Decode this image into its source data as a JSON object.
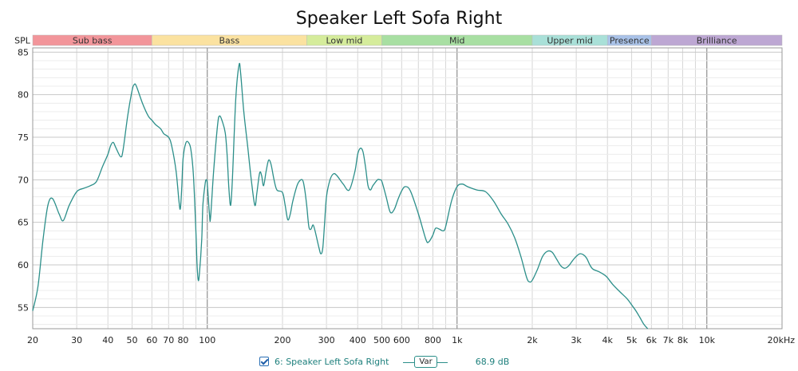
{
  "chart_data": {
    "type": "line",
    "title": "Speaker Left Sofa Right",
    "ylabel": "SPL",
    "x_scale": "log",
    "xlim": [
      20,
      20000
    ],
    "ylim": [
      52.5,
      85.5
    ],
    "x_ticks": [
      {
        "value": 20,
        "label": "20"
      },
      {
        "value": 30,
        "label": "30"
      },
      {
        "value": 40,
        "label": "40"
      },
      {
        "value": 50,
        "label": "50"
      },
      {
        "value": 60,
        "label": "60"
      },
      {
        "value": 70,
        "label": "70"
      },
      {
        "value": 80,
        "label": "80"
      },
      {
        "value": 100,
        "label": "100"
      },
      {
        "value": 200,
        "label": "200"
      },
      {
        "value": 300,
        "label": "300"
      },
      {
        "value": 400,
        "label": "400"
      },
      {
        "value": 500,
        "label": "500"
      },
      {
        "value": 600,
        "label": "600"
      },
      {
        "value": 800,
        "label": "800"
      },
      {
        "value": 1000,
        "label": "1k"
      },
      {
        "value": 2000,
        "label": "2k"
      },
      {
        "value": 3000,
        "label": "3k"
      },
      {
        "value": 4000,
        "label": "4k"
      },
      {
        "value": 5000,
        "label": "5k"
      },
      {
        "value": 6000,
        "label": "6k"
      },
      {
        "value": 7000,
        "label": "7k"
      },
      {
        "value": 8000,
        "label": "8k"
      },
      {
        "value": 10000,
        "label": "10k"
      },
      {
        "value": 20000,
        "label": "20kHz"
      }
    ],
    "y_ticks": [
      85,
      80,
      75,
      70,
      65,
      60,
      55
    ],
    "grid": true,
    "bands": [
      {
        "name": "Sub bass",
        "from": 20,
        "to": 60,
        "color": "#f2959a"
      },
      {
        "name": "Bass",
        "from": 60,
        "to": 250,
        "color": "#fbe2a0"
      },
      {
        "name": "Low mid",
        "from": 250,
        "to": 500,
        "color": "#d5ec9b"
      },
      {
        "name": "Mid",
        "from": 500,
        "to": 2000,
        "color": "#a8dfa2"
      },
      {
        "name": "Upper mid",
        "from": 2000,
        "to": 4000,
        "color": "#a9e0d8"
      },
      {
        "name": "Presence",
        "from": 4000,
        "to": 6000,
        "color": "#a9c2e8"
      },
      {
        "name": "Brilliance",
        "from": 6000,
        "to": 20000,
        "color": "#bda7d3"
      }
    ],
    "series": [
      {
        "name": "6: Speaker Left Sofa Right",
        "color": "#2c8f8a",
        "points": [
          [
            20,
            54.6
          ],
          [
            21,
            57.5
          ],
          [
            22,
            63
          ],
          [
            23,
            67
          ],
          [
            24,
            67.8
          ],
          [
            25.5,
            66
          ],
          [
            26.5,
            65.2
          ],
          [
            28,
            67
          ],
          [
            30,
            68.6
          ],
          [
            32,
            69
          ],
          [
            34,
            69.3
          ],
          [
            36,
            69.8
          ],
          [
            38,
            71.5
          ],
          [
            40,
            73
          ],
          [
            41,
            74
          ],
          [
            42,
            74.4
          ],
          [
            43,
            73.8
          ],
          [
            45,
            72.7
          ],
          [
            46,
            73.5
          ],
          [
            48,
            77.5
          ],
          [
            50,
            80.5
          ],
          [
            51,
            81.2
          ],
          [
            52,
            81
          ],
          [
            55,
            79
          ],
          [
            58,
            77.5
          ],
          [
            60,
            77
          ],
          [
            62,
            76.5
          ],
          [
            65,
            76
          ],
          [
            67,
            75.4
          ],
          [
            70,
            75
          ],
          [
            72,
            74
          ],
          [
            75,
            71
          ],
          [
            77,
            67.5
          ],
          [
            78,
            66.6
          ],
          [
            79,
            69
          ],
          [
            80,
            72.5
          ],
          [
            82,
            74.3
          ],
          [
            84,
            74.4
          ],
          [
            86,
            73.5
          ],
          [
            88,
            70.5
          ],
          [
            90,
            64
          ],
          [
            91,
            60
          ],
          [
            92,
            58.2
          ],
          [
            93,
            59
          ],
          [
            95,
            63
          ],
          [
            96,
            67
          ],
          [
            98,
            69.5
          ],
          [
            99,
            70
          ],
          [
            100,
            69.5
          ],
          [
            102,
            66
          ],
          [
            103,
            65.5
          ],
          [
            106,
            71
          ],
          [
            110,
            76.5
          ],
          [
            112,
            77.5
          ],
          [
            115,
            76.8
          ],
          [
            118,
            75.5
          ],
          [
            120,
            73
          ],
          [
            122,
            69
          ],
          [
            124,
            67
          ],
          [
            126,
            70
          ],
          [
            130,
            79.5
          ],
          [
            134,
            83.5
          ],
          [
            136,
            82.5
          ],
          [
            140,
            78
          ],
          [
            145,
            74
          ],
          [
            150,
            70
          ],
          [
            155,
            67
          ],
          [
            158,
            68.5
          ],
          [
            162,
            70.8
          ],
          [
            165,
            70.5
          ],
          [
            168,
            69.3
          ],
          [
            172,
            71
          ],
          [
            176,
            72.3
          ],
          [
            180,
            71.8
          ],
          [
            185,
            70
          ],
          [
            190,
            68.8
          ],
          [
            200,
            68.5
          ],
          [
            205,
            67
          ],
          [
            210,
            65.3
          ],
          [
            215,
            66
          ],
          [
            220,
            67.5
          ],
          [
            230,
            69.5
          ],
          [
            240,
            70
          ],
          [
            245,
            69
          ],
          [
            250,
            67
          ],
          [
            255,
            64.5
          ],
          [
            260,
            64.2
          ],
          [
            265,
            64.7
          ],
          [
            270,
            64
          ],
          [
            280,
            62
          ],
          [
            285,
            61.3
          ],
          [
            290,
            62
          ],
          [
            295,
            65
          ],
          [
            300,
            68
          ],
          [
            310,
            70
          ],
          [
            320,
            70.7
          ],
          [
            330,
            70.5
          ],
          [
            350,
            69.5
          ],
          [
            370,
            68.8
          ],
          [
            390,
            71
          ],
          [
            400,
            73
          ],
          [
            410,
            73.7
          ],
          [
            420,
            73.3
          ],
          [
            430,
            71.5
          ],
          [
            440,
            69.3
          ],
          [
            450,
            68.8
          ],
          [
            460,
            69.3
          ],
          [
            480,
            70
          ],
          [
            490,
            70
          ],
          [
            500,
            69.8
          ],
          [
            520,
            68
          ],
          [
            540,
            66.2
          ],
          [
            560,
            66.5
          ],
          [
            580,
            67.7
          ],
          [
            600,
            68.7
          ],
          [
            620,
            69.2
          ],
          [
            650,
            68.7
          ],
          [
            700,
            66
          ],
          [
            750,
            63
          ],
          [
            770,
            62.7
          ],
          [
            800,
            63.5
          ],
          [
            820,
            64.3
          ],
          [
            850,
            64.2
          ],
          [
            880,
            64
          ],
          [
            900,
            64.5
          ],
          [
            950,
            67.5
          ],
          [
            1000,
            69.2
          ],
          [
            1050,
            69.5
          ],
          [
            1100,
            69.2
          ],
          [
            1200,
            68.8
          ],
          [
            1300,
            68.6
          ],
          [
            1400,
            67.5
          ],
          [
            1500,
            66
          ],
          [
            1600,
            64.8
          ],
          [
            1700,
            63.2
          ],
          [
            1800,
            61
          ],
          [
            1900,
            58.5
          ],
          [
            1950,
            58
          ],
          [
            2000,
            58.2
          ],
          [
            2100,
            59.5
          ],
          [
            2200,
            61
          ],
          [
            2300,
            61.6
          ],
          [
            2400,
            61.5
          ],
          [
            2500,
            60.7
          ],
          [
            2600,
            59.9
          ],
          [
            2700,
            59.6
          ],
          [
            2800,
            59.9
          ],
          [
            2900,
            60.5
          ],
          [
            3000,
            61
          ],
          [
            3100,
            61.3
          ],
          [
            3200,
            61.2
          ],
          [
            3300,
            60.8
          ],
          [
            3400,
            60
          ],
          [
            3500,
            59.5
          ],
          [
            3700,
            59.2
          ],
          [
            3900,
            58.8
          ],
          [
            4000,
            58.5
          ],
          [
            4200,
            57.7
          ],
          [
            4500,
            56.8
          ],
          [
            4800,
            56
          ],
          [
            5000,
            55.3
          ],
          [
            5200,
            54.6
          ],
          [
            5400,
            53.8
          ],
          [
            5600,
            53
          ],
          [
            5800,
            52.5
          ]
        ]
      }
    ],
    "legend": {
      "placement": "bottom",
      "series_label": "6: Speaker Left Sofa Right",
      "var_label": "Var",
      "value_label": "68.9 dB"
    }
  }
}
